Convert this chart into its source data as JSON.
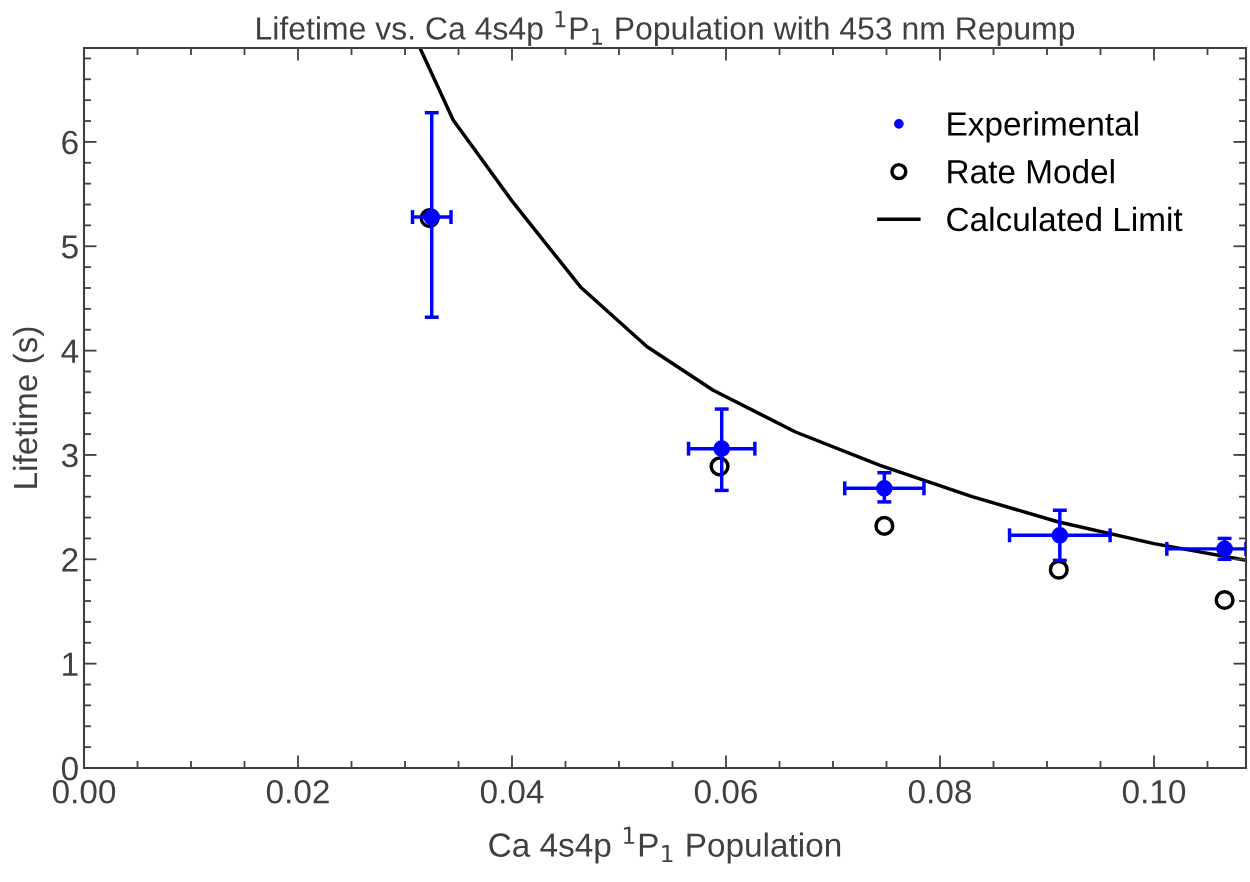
{
  "chart_data": {
    "type": "scatter",
    "title": "Lifetime vs. Ca 4s4p $^{1}$P$_{1}$ Population with 453 nm Repump",
    "xlabel": "Ca 4s4p $^{1}$P$_{1}$ Population",
    "ylabel": "Lifetime (s)",
    "xlim": [
      0,
      0.1086
    ],
    "xticks": [
      {
        "value": 0,
        "label": "0.00"
      },
      {
        "value": 0.02,
        "label": "0.02"
      },
      {
        "value": 0.04,
        "label": "0.04"
      },
      {
        "value": 0.06,
        "label": "0.06"
      },
      {
        "value": 0.08,
        "label": "0.08"
      },
      {
        "value": 0.1,
        "label": "0.10"
      }
    ],
    "ylim": [
      0,
      6.9
    ],
    "yticks": [
      0,
      1,
      2,
      3,
      4,
      5,
      6
    ],
    "grid": false,
    "legend": "top right",
    "series": [
      {
        "name": "Experimental",
        "color": "#0000ff",
        "marker": "circle",
        "x": [
          0.0325,
          0.0596,
          0.0748,
          0.0912,
          0.1066
        ],
        "values": [
          5.28,
          3.06,
          2.68,
          2.23,
          2.1
        ],
        "errors": [
          [
            4.32,
            6.28
          ],
          [
            2.66,
            3.44
          ],
          [
            2.55,
            2.83
          ],
          [
            1.99,
            2.47
          ],
          [
            2.0,
            2.2
          ]
        ],
        "xerrors": [
          0.0018,
          0.0031,
          0.0037,
          0.0047,
          [
            0.1012,
            0.1086
          ]
        ]
      },
      {
        "name": "Rate Model",
        "color": "#000000",
        "marker": "circle",
        "x": [
          0.0323,
          0.0594,
          0.0748,
          0.0911,
          0.1066
        ],
        "values": [
          5.27,
          2.89,
          2.32,
          1.9,
          1.61
        ]
      },
      {
        "name": "Calculated Limit",
        "type": "line",
        "color": "#000000",
        "marker": "none",
        "line_style": "solid",
        "x": [
          0.0314,
          0.0345,
          0.0401,
          0.0464,
          0.0526,
          0.0588,
          0.0665,
          0.0744,
          0.083,
          0.091,
          0.1,
          0.1086
        ],
        "values": [
          6.9,
          6.21,
          5.42,
          4.61,
          4.04,
          3.62,
          3.22,
          2.9,
          2.6,
          2.36,
          2.15,
          1.99
        ]
      }
    ]
  }
}
